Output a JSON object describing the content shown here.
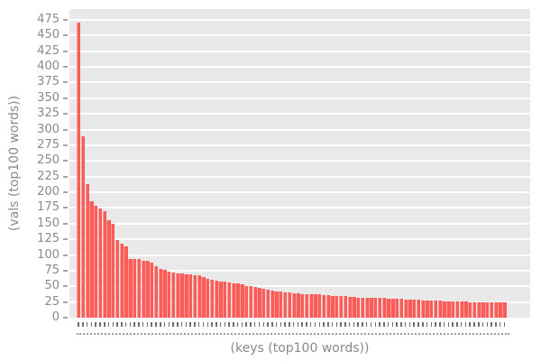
{
  "chart_data": {
    "type": "bar",
    "title": "",
    "xlabel": "(keys (top100 words))",
    "ylabel": "(vals (top100 words))",
    "ylim": [
      0,
      475
    ],
    "ytick_step": 25,
    "yticks": [
      475,
      450,
      425,
      400,
      375,
      350,
      325,
      300,
      275,
      250,
      225,
      200,
      175,
      150,
      125,
      100,
      75,
      50,
      25,
      0
    ],
    "n_bars": 100,
    "x_tick_labels_readable": false,
    "grid": "horizontal white lines on gray panel",
    "legend_position": "none",
    "values": [
      470,
      290,
      213,
      186,
      178,
      174,
      170,
      156,
      149,
      124,
      118,
      113,
      94,
      93,
      93,
      91,
      90,
      88,
      82,
      78,
      77,
      74,
      72,
      71,
      70,
      69,
      69,
      68,
      67,
      65,
      62,
      61,
      59,
      58,
      57,
      56,
      55,
      54,
      53,
      51,
      50,
      49,
      48,
      46,
      45,
      43,
      42,
      42,
      41,
      40,
      39,
      39,
      38,
      38,
      38,
      37,
      37,
      36,
      36,
      35,
      35,
      34,
      34,
      33,
      33,
      32,
      32,
      32,
      31,
      31,
      31,
      31,
      30,
      30,
      30,
      30,
      29,
      29,
      29,
      29,
      28,
      28,
      28,
      28,
      27,
      26,
      26,
      26,
      26,
      26,
      26,
      25,
      25,
      25,
      25,
      25,
      25,
      25,
      24,
      24
    ],
    "colors": {
      "bar_fill": "#f95d5a",
      "bar_highlight": "#fb9a97",
      "plot_background": "#e9e9e9",
      "gridline": "#ffffff",
      "axis_text": "#8a8a8a",
      "figure_background": "#ffffff"
    }
  }
}
